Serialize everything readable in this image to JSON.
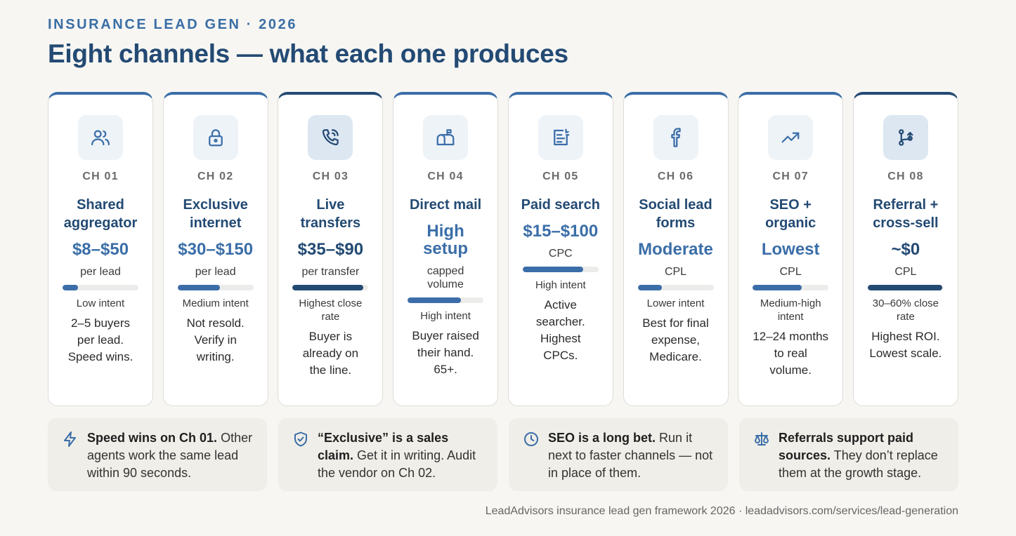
{
  "header": {
    "eyebrow": "INSURANCE LEAD GEN · 2026",
    "title": "Eight channels — what each one produces"
  },
  "colors": {
    "accent": "#3b6ea8",
    "accent_dark": "#234a73",
    "background": "#f7f6f3"
  },
  "channels": [
    {
      "icon": "users-icon",
      "ch": "CH 01",
      "name_lines": [
        "Shared",
        "aggregator"
      ],
      "price_lines": [
        "$8–$50"
      ],
      "unit_lines": [
        "per lead"
      ],
      "intent_level": 0.2,
      "intent_lines": [
        "Low intent"
      ],
      "desc_lines": [
        "2–5 buyers",
        "per lead.",
        "Speed wins."
      ]
    },
    {
      "icon": "lock-icon",
      "ch": "CH 02",
      "name_lines": [
        "Exclusive",
        "internet"
      ],
      "price_lines": [
        "$30–$150"
      ],
      "unit_lines": [
        "per lead"
      ],
      "intent_level": 0.56,
      "intent_lines": [
        "Medium intent"
      ],
      "desc_lines": [
        "Not resold.",
        "Verify in",
        "writing."
      ]
    },
    {
      "icon": "phone-icon",
      "ch": "CH 03",
      "name_lines": [
        "Live",
        "transfers"
      ],
      "price_lines": [
        "$35–$90"
      ],
      "unit_lines": [
        "per transfer"
      ],
      "intent_level": 0.93,
      "intent_lines": [
        "Highest close",
        "rate"
      ],
      "desc_lines": [
        "Buyer is",
        "already on",
        "the line."
      ]
    },
    {
      "icon": "mailbox-icon",
      "ch": "CH 04",
      "name_lines": [
        "Direct mail"
      ],
      "price_lines": [
        "High",
        "setup"
      ],
      "unit_lines": [
        "capped",
        "volume"
      ],
      "intent_level": 0.7,
      "intent_lines": [
        "High intent"
      ],
      "desc_lines": [
        "Buyer raised",
        "their hand.",
        "65+."
      ]
    },
    {
      "icon": "search-ad-icon",
      "ch": "CH 05",
      "name_lines": [
        "Paid search"
      ],
      "price_lines": [
        "$15–$100"
      ],
      "unit_lines": [
        "CPC"
      ],
      "intent_level": 0.8,
      "intent_lines": [
        "High intent"
      ],
      "desc_lines": [
        "Active",
        "searcher.",
        "Highest",
        "CPCs."
      ]
    },
    {
      "icon": "facebook-icon",
      "ch": "CH 06",
      "name_lines": [
        "Social lead",
        "forms"
      ],
      "price_lines": [
        "Moderate"
      ],
      "unit_lines": [
        "CPL"
      ],
      "intent_level": 0.32,
      "intent_lines": [
        "Lower intent"
      ],
      "desc_lines": [
        "Best for final",
        "expense,",
        "Medicare."
      ]
    },
    {
      "icon": "trending-up-icon",
      "ch": "CH 07",
      "name_lines": [
        "SEO +",
        "organic"
      ],
      "price_lines": [
        "Lowest"
      ],
      "unit_lines": [
        "CPL"
      ],
      "intent_level": 0.65,
      "intent_lines": [
        "Medium-high",
        "intent"
      ],
      "desc_lines": [
        "12–24 months",
        "to real",
        "volume."
      ]
    },
    {
      "icon": "git-merge-icon",
      "ch": "CH 08",
      "name_lines": [
        "Referral +",
        "cross-sell"
      ],
      "price_lines": [
        "~$0"
      ],
      "unit_lines": [
        "CPL"
      ],
      "intent_level": 0.98,
      "intent_lines": [
        "30–60% close",
        "rate"
      ],
      "desc_lines": [
        "Highest ROI.",
        "Lowest scale."
      ]
    }
  ],
  "tips": [
    {
      "icon": "lightning-icon",
      "bold": "Speed wins on Ch 01.",
      "text": "Other agents work the same lead within 90 seconds."
    },
    {
      "icon": "shield-icon",
      "bold": "“Exclusive” is a sales claim.",
      "text": "Get it in writing. Audit the vendor on Ch 02."
    },
    {
      "icon": "clock-icon",
      "bold": "SEO is a long bet.",
      "text": "Run it next to faster channels — not in place of them."
    },
    {
      "icon": "scale-icon",
      "bold": "Referrals support paid sources.",
      "text": "They don’t replace them at the growth stage."
    }
  ],
  "footer": "LeadAdvisors insurance lead gen framework 2026 · leadadvisors.com/services/lead-generation"
}
